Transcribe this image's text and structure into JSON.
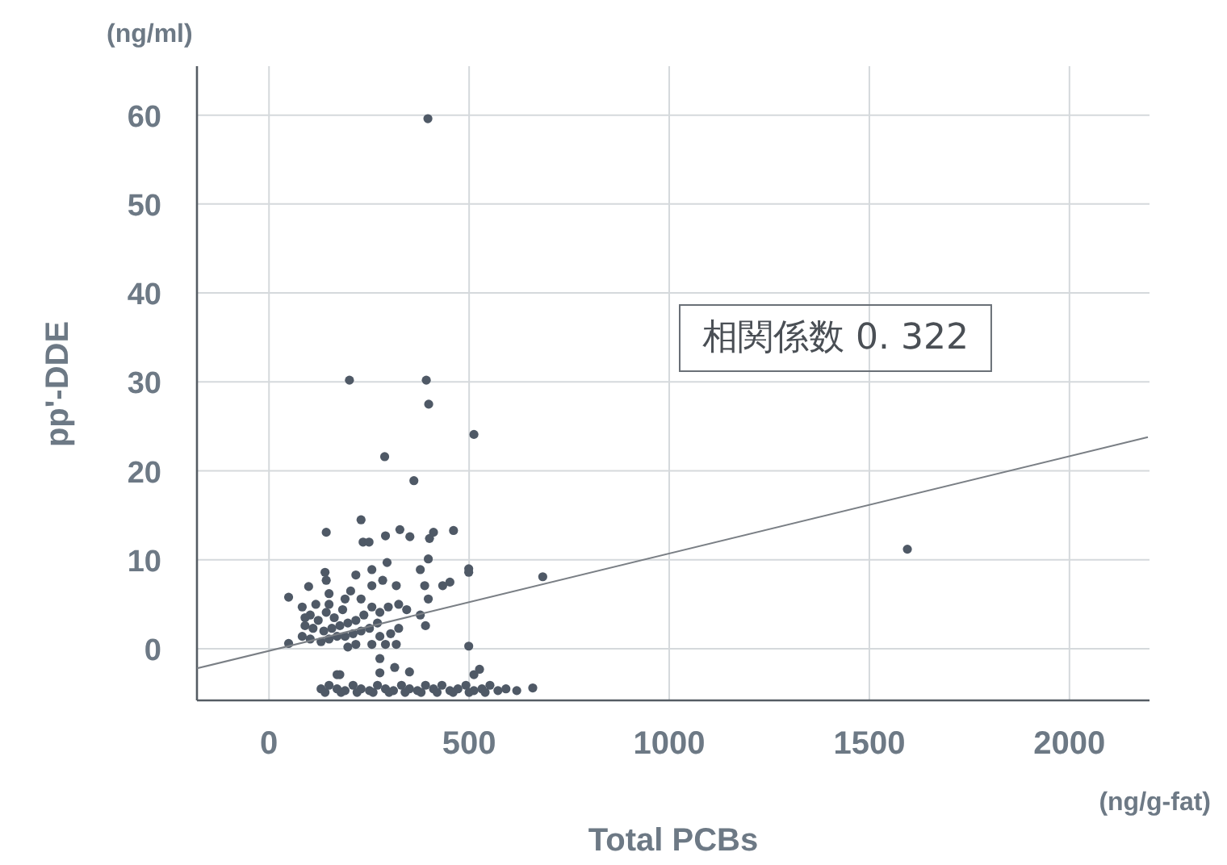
{
  "chart_data": {
    "type": "scatter",
    "xlabel": "Total PCBs",
    "ylabel": "pp'-DDE",
    "annotations": [
      "(ng/ml)",
      "(ng/g-fat)",
      "相関係数 0. 322"
    ],
    "xlim": [
      -180,
      2200
    ],
    "ylim": [
      -5.8,
      65.5
    ],
    "xticks": [
      0,
      500,
      1000,
      1500,
      2000
    ],
    "yticks": [
      0,
      10,
      20,
      30,
      40,
      50,
      60
    ],
    "grid": true,
    "marker": "circle",
    "series": [
      {
        "color": "#4f5966",
        "x": [
          397,
          201,
          393,
          399,
          512,
          289,
          362,
          1595,
          684,
          143,
          230,
          235,
          250,
          291,
          327,
          352,
          401,
          411,
          461,
          295,
          398,
          499,
          499,
          140,
          143,
          217,
          257,
          99,
          49,
          150,
          204,
          257,
          318,
          284,
          378,
          389,
          434,
          452,
          398,
          378,
          391,
          318,
          277,
          291,
          499,
          49,
          314,
          177,
          351,
          526,
          512,
          619,
          659,
          83,
          103,
          123,
          143,
          163,
          184,
          90,
          110,
          137,
          157,
          177,
          197,
          217,
          237,
          83,
          103,
          130,
          150,
          170,
          190,
          210,
          230,
          251,
          271,
          277,
          298,
          324,
          344,
          257,
          277,
          304,
          324,
          217,
          197,
          90,
          117,
          150,
          190,
          230,
          257,
          130,
          150,
          170,
          190,
          210,
          230,
          251,
          271,
          291,
          311,
          331,
          351,
          371,
          391,
          411,
          432,
          452,
          472,
          492,
          512,
          532,
          552,
          572,
          592,
          140,
          180,
          220,
          260,
          300,
          340,
          380,
          420,
          460,
          500,
          540,
          170,
          277
        ],
        "values": [
          59.6,
          30.2,
          30.2,
          27.5,
          24.1,
          21.6,
          18.9,
          11.2,
          8.1,
          13.1,
          14.5,
          12.0,
          12.0,
          12.7,
          13.4,
          12.6,
          12.4,
          13.1,
          13.3,
          9.7,
          10.1,
          9.0,
          8.6,
          8.6,
          7.7,
          8.3,
          8.9,
          7.0,
          5.8,
          6.2,
          6.5,
          7.1,
          7.1,
          7.7,
          8.9,
          7.1,
          7.1,
          7.5,
          5.6,
          3.8,
          2.6,
          0.5,
          -1.1,
          0.5,
          0.3,
          0.6,
          -2.1,
          -2.9,
          -2.6,
          -2.3,
          -2.9,
          -4.7,
          -4.4,
          4.7,
          3.8,
          3.2,
          4.1,
          3.5,
          4.4,
          2.6,
          2.3,
          2.0,
          2.3,
          2.6,
          2.9,
          3.2,
          3.8,
          1.4,
          1.1,
          0.8,
          1.1,
          1.4,
          1.4,
          1.7,
          2.0,
          2.3,
          2.9,
          4.1,
          4.7,
          5.0,
          4.4,
          0.5,
          1.4,
          1.7,
          2.3,
          0.5,
          0.2,
          3.5,
          5.0,
          5.0,
          5.6,
          5.6,
          4.7,
          -4.5,
          -4.1,
          -4.5,
          -4.7,
          -4.1,
          -4.5,
          -4.7,
          -4.1,
          -4.5,
          -4.7,
          -4.1,
          -4.5,
          -4.7,
          -4.1,
          -4.5,
          -4.1,
          -4.7,
          -4.5,
          -4.1,
          -4.7,
          -4.5,
          -4.1,
          -4.7,
          -4.5,
          -4.9,
          -4.9,
          -4.9,
          -4.9,
          -4.9,
          -4.9,
          -4.9,
          -4.9,
          -4.9,
          -4.9,
          -4.9,
          -2.9,
          -2.7
        ]
      },
      {
        "type": "line",
        "color": "#7a7f85",
        "marker": "none",
        "x": [
          -180,
          2196
        ],
        "values": [
          -2.2,
          23.8
        ]
      }
    ]
  }
}
